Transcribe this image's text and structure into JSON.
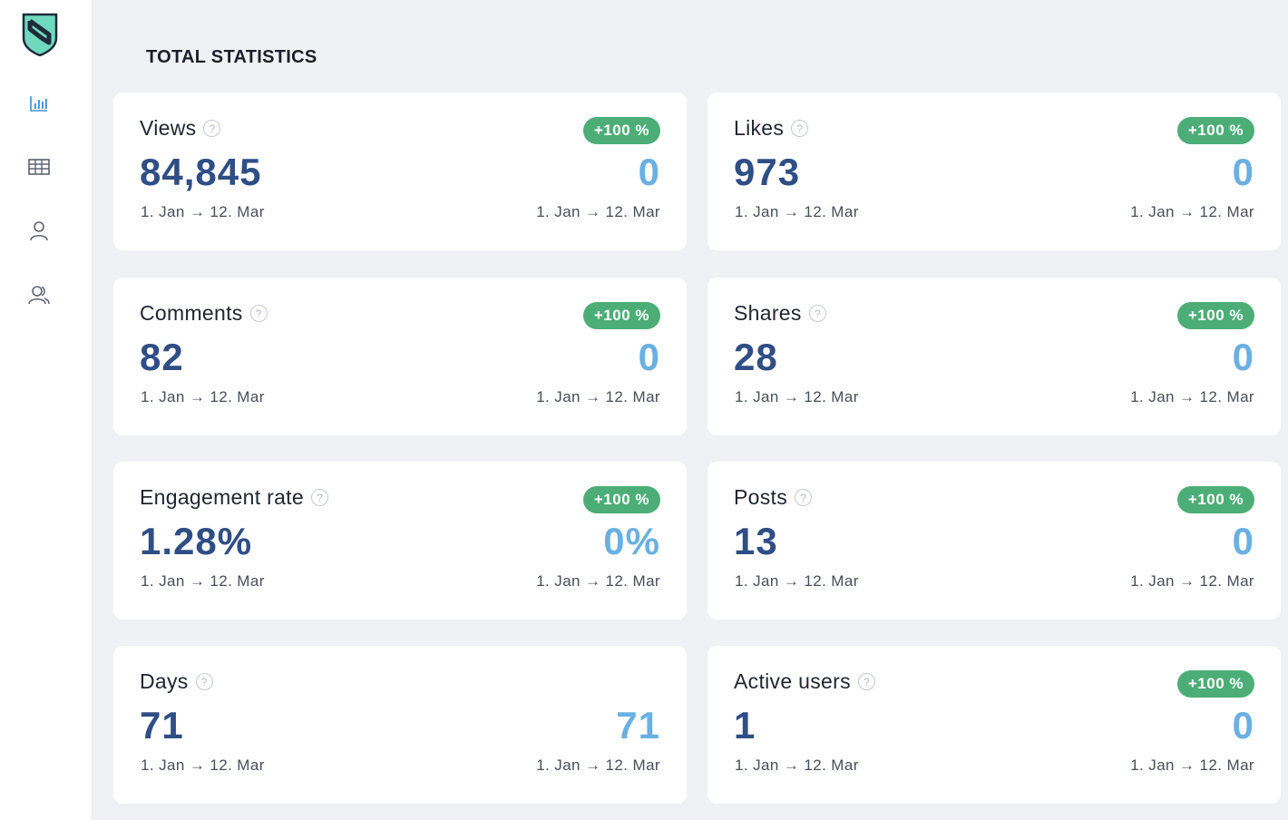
{
  "sidebar": {
    "logo": "shield-logo",
    "items": [
      {
        "name": "chart-icon",
        "active": true
      },
      {
        "name": "table-icon",
        "active": false
      },
      {
        "name": "user-icon",
        "active": false
      },
      {
        "name": "users-icon",
        "active": false
      }
    ]
  },
  "page": {
    "title": "TOTAL STATISTICS"
  },
  "colors": {
    "accent": "#2f4e85",
    "compare": "#6ab0e2",
    "badge": "#4cae76",
    "logo_fill": "#6fd9bf"
  },
  "cards": [
    {
      "label": "Views",
      "value": "84,845",
      "compare": "0",
      "badge": "+100 %",
      "date_left": "1. Jan → 12. Mar",
      "date_right": "1. Jan → 12. Mar"
    },
    {
      "label": "Likes",
      "value": "973",
      "compare": "0",
      "badge": "+100 %",
      "date_left": "1. Jan → 12. Mar",
      "date_right": "1. Jan → 12. Mar"
    },
    {
      "label": "Comments",
      "value": "82",
      "compare": "0",
      "badge": "+100 %",
      "date_left": "1. Jan → 12. Mar",
      "date_right": "1. Jan → 12. Mar"
    },
    {
      "label": "Shares",
      "value": "28",
      "compare": "0",
      "badge": "+100 %",
      "date_left": "1. Jan → 12. Mar",
      "date_right": "1. Jan → 12. Mar"
    },
    {
      "label": "Engagement rate",
      "value": "1.28%",
      "compare": "0%",
      "badge": "+100 %",
      "date_left": "1. Jan → 12. Mar",
      "date_right": "1. Jan → 12. Mar"
    },
    {
      "label": "Posts",
      "value": "13",
      "compare": "0",
      "badge": "+100 %",
      "date_left": "1. Jan → 12. Mar",
      "date_right": "1. Jan → 12. Mar"
    },
    {
      "label": "Days",
      "value": "71",
      "compare": "71",
      "badge": "",
      "date_left": "1. Jan → 12. Mar",
      "date_right": "1. Jan → 12. Mar"
    },
    {
      "label": "Active users",
      "value": "1",
      "compare": "0",
      "badge": "+100 %",
      "date_left": "1. Jan → 12. Mar",
      "date_right": "1. Jan → 12. Mar"
    }
  ]
}
